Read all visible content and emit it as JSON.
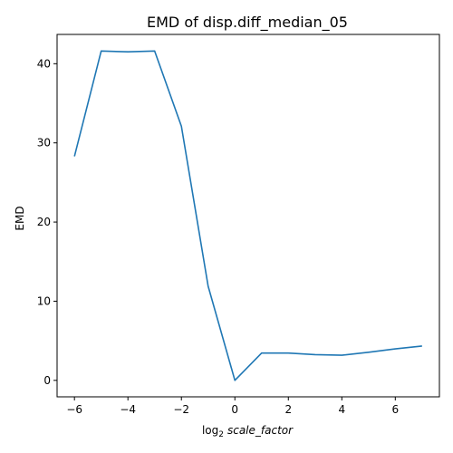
{
  "chart_data": {
    "type": "line",
    "title": "EMD of disp.diff_median_05",
    "xlabel": {
      "prefix": "log",
      "subscript": "2",
      "italic": "scale_factor"
    },
    "ylabel": "EMD",
    "xlim": [
      -6.65,
      7.65
    ],
    "ylim": [
      -2.08,
      43.7
    ],
    "xticks": [
      -6,
      -4,
      -2,
      0,
      2,
      4,
      6
    ],
    "xtick_labels": [
      "−6",
      "−4",
      "−2",
      "0",
      "2",
      "4",
      "6"
    ],
    "yticks": [
      0,
      10,
      20,
      30,
      40
    ],
    "ytick_labels": [
      "0",
      "10",
      "20",
      "30",
      "40"
    ],
    "grid": false,
    "legend": "none",
    "series": [
      {
        "color": "#1f77b4",
        "x": [
          -6,
          -5,
          -4,
          -3,
          -2,
          -1,
          0,
          1,
          2,
          3,
          4,
          5,
          6,
          7
        ],
        "y": [
          28.3,
          41.6,
          41.5,
          41.6,
          32.1,
          11.9,
          0.0,
          3.45,
          3.45,
          3.25,
          3.18,
          3.55,
          3.98,
          4.34
        ]
      }
    ]
  }
}
